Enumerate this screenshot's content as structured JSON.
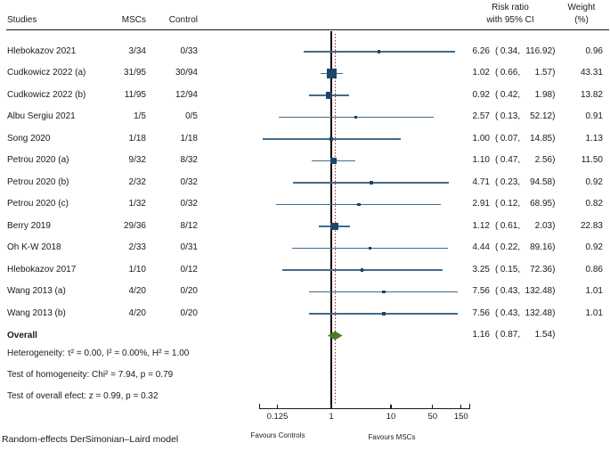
{
  "header": {
    "studies": "Studies",
    "mscs": "MSCs",
    "control": "Control",
    "risk_ratio_line1": "Risk ratio",
    "risk_ratio_line2": "with 95% CI",
    "weight_line1": "Weight",
    "weight_line2": "(%)"
  },
  "chart_data": {
    "type": "forest",
    "x_axis": {
      "scale": "log",
      "ticks": [
        0.125,
        1,
        10,
        50,
        150
      ],
      "tick_labels": [
        "0.125",
        "1",
        "10",
        "50",
        "150"
      ],
      "range": [
        0.06,
        215
      ],
      "reference_line": 1,
      "overall_estimate_line": 1.16
    },
    "studies": [
      {
        "name": "Hlebokazov 2021",
        "mscs": "3/34",
        "control": "0/33",
        "rr": 6.26,
        "ci_low": 0.34,
        "ci_high": 116.92,
        "weight": 0.96
      },
      {
        "name": "Cudkowicz 2022 (a)",
        "mscs": "31/95",
        "control": "30/94",
        "rr": 1.02,
        "ci_low": 0.66,
        "ci_high": 1.57,
        "weight": 43.31
      },
      {
        "name": "Cudkowicz 2022 (b)",
        "mscs": "11/95",
        "control": "12/94",
        "rr": 0.92,
        "ci_low": 0.42,
        "ci_high": 1.98,
        "weight": 13.82
      },
      {
        "name": "Albu Sergiu 2021",
        "mscs": "1/5",
        "control": "0/5",
        "rr": 2.57,
        "ci_low": 0.13,
        "ci_high": 52.12,
        "weight": 0.91
      },
      {
        "name": "Song 2020",
        "mscs": "1/18",
        "control": "1/18",
        "rr": 1.0,
        "ci_low": 0.07,
        "ci_high": 14.85,
        "weight": 1.13
      },
      {
        "name": "Petrou 2020 (a)",
        "mscs": "9/32",
        "control": "8/32",
        "rr": 1.1,
        "ci_low": 0.47,
        "ci_high": 2.56,
        "weight": 11.5
      },
      {
        "name": "Petrou 2020 (b)",
        "mscs": "2/32",
        "control": "0/32",
        "rr": 4.71,
        "ci_low": 0.23,
        "ci_high": 94.58,
        "weight": 0.92
      },
      {
        "name": "Petrou 2020 (c)",
        "mscs": "1/32",
        "control": "0/32",
        "rr": 2.91,
        "ci_low": 0.12,
        "ci_high": 68.95,
        "weight": 0.82
      },
      {
        "name": "Berry 2019",
        "mscs": "29/36",
        "control": "8/12",
        "rr": 1.12,
        "ci_low": 0.61,
        "ci_high": 2.03,
        "weight": 22.83
      },
      {
        "name": "Oh K-W 2018",
        "mscs": "2/33",
        "control": "0/31",
        "rr": 4.44,
        "ci_low": 0.22,
        "ci_high": 89.16,
        "weight": 0.92
      },
      {
        "name": "Hlebokazov 2017",
        "mscs": "1/10",
        "control": "0/12",
        "rr": 3.25,
        "ci_low": 0.15,
        "ci_high": 72.36,
        "weight": 0.86
      },
      {
        "name": "Wang 2013 (a)",
        "mscs": "4/20",
        "control": "0/20",
        "rr": 7.56,
        "ci_low": 0.43,
        "ci_high": 132.48,
        "weight": 1.01
      },
      {
        "name": "Wang 2013 (b)",
        "mscs": "4/20",
        "control": "0/20",
        "rr": 7.56,
        "ci_low": 0.43,
        "ci_high": 132.48,
        "weight": 1.01
      }
    ],
    "overall": {
      "label": "Overall",
      "rr": 1.16,
      "ci_low": 0.87,
      "ci_high": 1.54
    },
    "stats_lines": [
      "Heterogeneity: τ² = 0.00, I² = 0.00%, H² = 1.00",
      "Test of homogeneity: Chi² = 7.94, p = 0.79",
      "Test of overall efect: z = 0.99, p = 0.32"
    ],
    "footer": "Random-effects DerSimonian–Laird model",
    "favours_left": "Favours Controls",
    "favours_right": "Favours MSCs",
    "colors": {
      "ci_line": "#426a8a",
      "marker": "#1d4568",
      "reference_line": "#000000",
      "overall_line": "#b22222",
      "diamond_fill": "#4e7b27",
      "text": "#1a1a1a"
    }
  }
}
